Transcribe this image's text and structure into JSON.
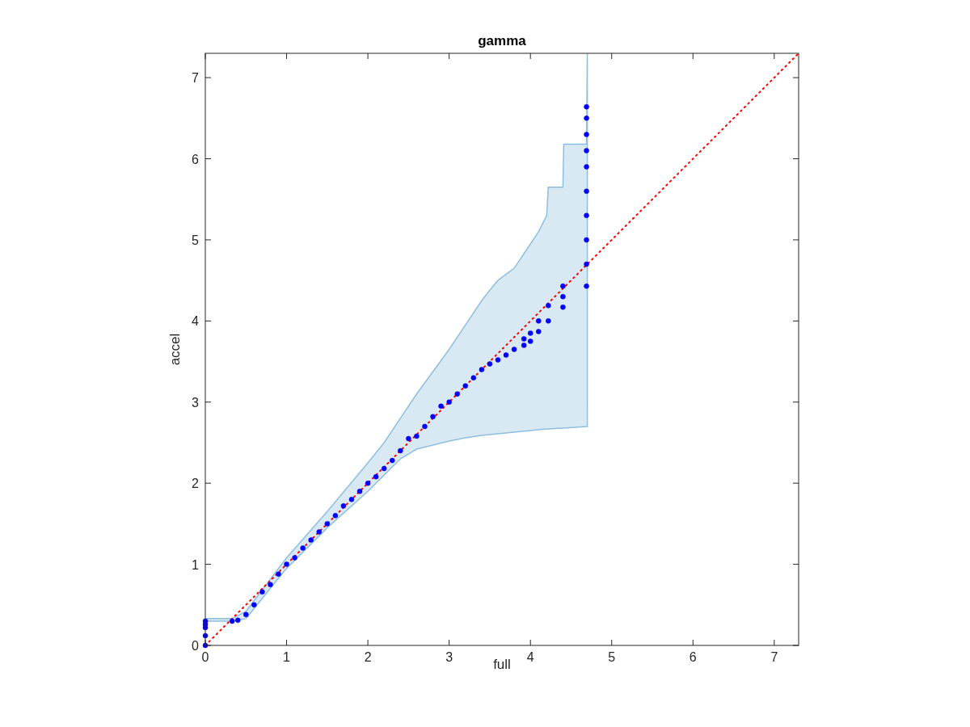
{
  "chart_data": {
    "type": "scatter",
    "title": "gamma",
    "xlabel": "full",
    "ylabel": "accel",
    "xlim": [
      0,
      7.3
    ],
    "ylim": [
      0,
      7.3
    ],
    "xticks": [
      0,
      1,
      2,
      3,
      4,
      5,
      6,
      7
    ],
    "yticks": [
      0,
      1,
      2,
      3,
      4,
      5,
      6,
      7
    ],
    "grid": false,
    "series": [
      {
        "type": "line",
        "color": "#8fbfdf",
        "x": [
          0,
          0.33,
          0.5,
          1.0,
          1.5,
          2.0,
          2.2,
          2.4,
          2.6,
          3.0,
          3.2,
          3.4,
          3.5,
          3.6,
          3.8,
          4.0,
          4.1,
          4.2,
          4.22,
          4.4,
          4.41,
          4.69,
          4.7
        ],
        "values": [
          null,
          null,
          null,
          null,
          null,
          null,
          null,
          null,
          null,
          null,
          null,
          null,
          null,
          null,
          null,
          null,
          null,
          null,
          null,
          null,
          null,
          null,
          null
        ],
        "lower": [
          0.3,
          0.3,
          0.33,
          0.95,
          1.45,
          1.9,
          2.1,
          2.3,
          2.42,
          2.52,
          2.56,
          2.59,
          2.6,
          2.61,
          2.63,
          2.65,
          2.66,
          2.67,
          2.67,
          2.68,
          2.68,
          2.7,
          2.7
        ],
        "upper": [
          0.33,
          0.33,
          0.42,
          1.08,
          1.65,
          2.25,
          2.5,
          2.8,
          3.1,
          3.65,
          3.95,
          4.25,
          4.38,
          4.5,
          4.65,
          4.95,
          5.1,
          5.3,
          5.65,
          5.65,
          6.18,
          6.18,
          7.3
        ]
      },
      {
        "type": "line",
        "color": "#ff0000",
        "line_style": "dotted",
        "x": [
          0,
          7.3
        ],
        "values": [
          0,
          7.3
        ]
      },
      {
        "color": "#0000ff",
        "marker": "circle",
        "x": [
          0,
          0,
          0,
          0,
          0,
          0.33,
          0.4,
          0.5,
          0.6,
          0.7,
          0.8,
          0.9,
          1.0,
          1.1,
          1.2,
          1.3,
          1.4,
          1.5,
          1.6,
          1.7,
          1.8,
          1.9,
          2.0,
          2.1,
          2.2,
          2.3,
          2.4,
          2.5,
          2.6,
          2.7,
          2.8,
          2.9,
          3.0,
          3.1,
          3.2,
          3.3,
          3.4,
          3.5,
          3.6,
          3.7,
          3.8,
          3.92,
          3.92,
          4.0,
          4.0,
          4.1,
          4.1,
          4.22,
          4.22,
          4.4,
          4.4,
          4.4,
          4.69,
          4.69,
          4.69,
          4.69,
          4.69,
          4.69,
          4.69,
          4.69,
          4.69,
          4.69
        ],
        "values": [
          0,
          0.12,
          0.22,
          0.26,
          0.3,
          0.3,
          0.31,
          0.38,
          0.5,
          0.66,
          0.75,
          0.88,
          1.0,
          1.08,
          1.2,
          1.3,
          1.4,
          1.5,
          1.6,
          1.72,
          1.8,
          1.9,
          2.0,
          2.08,
          2.18,
          2.28,
          2.4,
          2.55,
          2.58,
          2.7,
          2.82,
          2.95,
          3.0,
          3.1,
          3.2,
          3.3,
          3.4,
          3.47,
          3.52,
          3.58,
          3.65,
          3.7,
          3.78,
          3.75,
          3.85,
          3.87,
          4.0,
          4.0,
          4.19,
          4.17,
          4.3,
          4.43,
          4.43,
          4.7,
          5.0,
          5.3,
          5.6,
          5.9,
          6.1,
          6.3,
          6.5,
          6.64
        ]
      }
    ]
  }
}
